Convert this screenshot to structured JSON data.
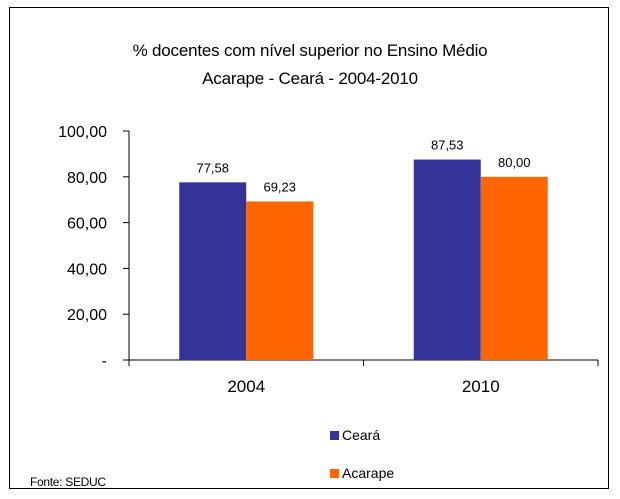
{
  "chart_data": {
    "type": "bar",
    "title": [
      "% docentes com nível  superior no Ensino Médio",
      "Acarape  -  Ceará - 2004-2010"
    ],
    "categories": [
      "2004",
      "2010"
    ],
    "series": [
      {
        "name": "Ceará",
        "values": [
          77.58,
          87.53
        ],
        "labels": [
          "77,58",
          "87,53"
        ],
        "color": "#333399"
      },
      {
        "name": "Acarape",
        "values": [
          69.23,
          80.0
        ],
        "labels": [
          "69,23",
          "80,00"
        ],
        "color": "#FF6600"
      }
    ],
    "ylim": [
      0,
      100
    ],
    "yticks": [
      0,
      20,
      40,
      60,
      80,
      100
    ],
    "ytick_labels": [
      "-",
      "20,00",
      "40,00",
      "60,00",
      "80,00",
      "100,00"
    ],
    "grid": false,
    "legend": "bottom",
    "source": "Fonte: SEDUC"
  }
}
